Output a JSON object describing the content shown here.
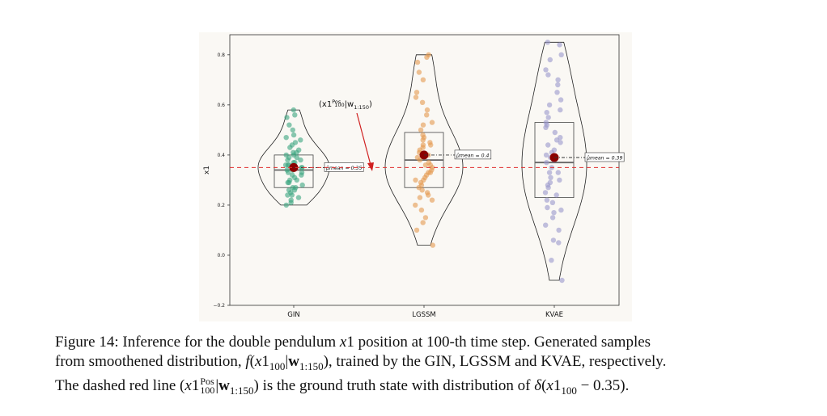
{
  "chart_data": {
    "type": "violin",
    "ylabel": "x1",
    "ylim": [
      -0.2,
      0.88
    ],
    "yticks": [
      "−0.2",
      "0.0",
      "0.2",
      "0.4",
      "0.6",
      "0.8"
    ],
    "ytick_values": [
      -0.2,
      0.0,
      0.2,
      0.4,
      0.6,
      0.8
    ],
    "categories": [
      "GIN",
      "LGSSM",
      "KVAE"
    ],
    "ground_truth": 0.35,
    "ground_truth_label": "(x1",
    "ground_truth_label_sup": "Pos",
    "ground_truth_label_sub": "100",
    "ground_truth_label_tail": "|w",
    "ground_truth_label_tail_sub": "1:150",
    "ground_truth_label_close": ")",
    "series": [
      {
        "name": "GIN",
        "color": "#3aa57f",
        "mean": 0.35,
        "mean_label": "μ̂mean = 0.35",
        "q1": 0.27,
        "median": 0.34,
        "q3": 0.4,
        "min": 0.2,
        "max": 0.58,
        "points": [
          0.58,
          0.56,
          0.55,
          0.52,
          0.5,
          0.48,
          0.47,
          0.46,
          0.45,
          0.44,
          0.43,
          0.42,
          0.41,
          0.4,
          0.4,
          0.39,
          0.39,
          0.38,
          0.37,
          0.37,
          0.36,
          0.36,
          0.35,
          0.35,
          0.34,
          0.34,
          0.33,
          0.33,
          0.32,
          0.31,
          0.3,
          0.3,
          0.29,
          0.28,
          0.27,
          0.26,
          0.26,
          0.25,
          0.24,
          0.23,
          0.22,
          0.21,
          0.2,
          0.32,
          0.36,
          0.38,
          0.41,
          0.29,
          0.27,
          0.24
        ]
      },
      {
        "name": "LGSSM",
        "color": "#e59a4f",
        "mean": 0.4,
        "mean_label": "μ̂mean = 0.4",
        "q1": 0.27,
        "median": 0.38,
        "q3": 0.49,
        "min": 0.04,
        "max": 0.8,
        "points": [
          0.8,
          0.79,
          0.77,
          0.73,
          0.7,
          0.65,
          0.63,
          0.61,
          0.58,
          0.56,
          0.53,
          0.5,
          0.48,
          0.47,
          0.46,
          0.45,
          0.44,
          0.43,
          0.42,
          0.41,
          0.4,
          0.39,
          0.38,
          0.37,
          0.36,
          0.35,
          0.34,
          0.33,
          0.33,
          0.32,
          0.31,
          0.3,
          0.29,
          0.28,
          0.27,
          0.26,
          0.25,
          0.24,
          0.23,
          0.22,
          0.2,
          0.18,
          0.15,
          0.13,
          0.1,
          0.04,
          0.52,
          0.44,
          0.36,
          0.3
        ]
      },
      {
        "name": "KVAE",
        "color": "#9a98cc",
        "mean": 0.39,
        "mean_label": "μ̂mean = 0.39",
        "q1": 0.23,
        "median": 0.37,
        "q3": 0.53,
        "min": -0.1,
        "max": 0.85,
        "points": [
          0.85,
          0.84,
          0.8,
          0.78,
          0.74,
          0.72,
          0.7,
          0.68,
          0.65,
          0.62,
          0.6,
          0.58,
          0.55,
          0.53,
          0.52,
          0.51,
          0.49,
          0.47,
          0.45,
          0.44,
          0.42,
          0.4,
          0.39,
          0.38,
          0.37,
          0.35,
          0.33,
          0.31,
          0.3,
          0.28,
          0.27,
          0.25,
          0.24,
          0.22,
          0.21,
          0.19,
          0.17,
          0.15,
          0.12,
          0.1,
          0.06,
          0.05,
          -0.02,
          -0.1,
          0.33,
          0.46,
          0.29,
          0.41,
          0.57,
          0.18
        ]
      }
    ]
  },
  "caption": {
    "line1_a": "Figure 14: Inference for the double pendulum ",
    "line1_b": "x",
    "line1_c": "1 position at 100-th time step. Generated samples",
    "line2_a": "from smoothened distribution, ",
    "line2_f": "f",
    "line2_b": "(",
    "line2_x": "x",
    "line2_c": "1",
    "line2_sub1": "100",
    "line2_d": "|",
    "line2_w": "w",
    "line2_sub2": "1:150",
    "line2_e": "), trained by the GIN, LGSSM and KVAE, respectively.",
    "line3_a": "The dashed red line (",
    "line3_x": "x",
    "line3_b": "1",
    "line3_sup": "Pos",
    "line3_sub": "100",
    "line3_c": "|",
    "line3_w": "w",
    "line3_sub2": "1:150",
    "line3_d": ") is the ground truth state with distribution of ",
    "line3_delta": "δ",
    "line3_e": "(",
    "line3_x2": "x",
    "line3_f": "1",
    "line3_sub3": "100",
    "line3_g": " − 0.35)."
  }
}
